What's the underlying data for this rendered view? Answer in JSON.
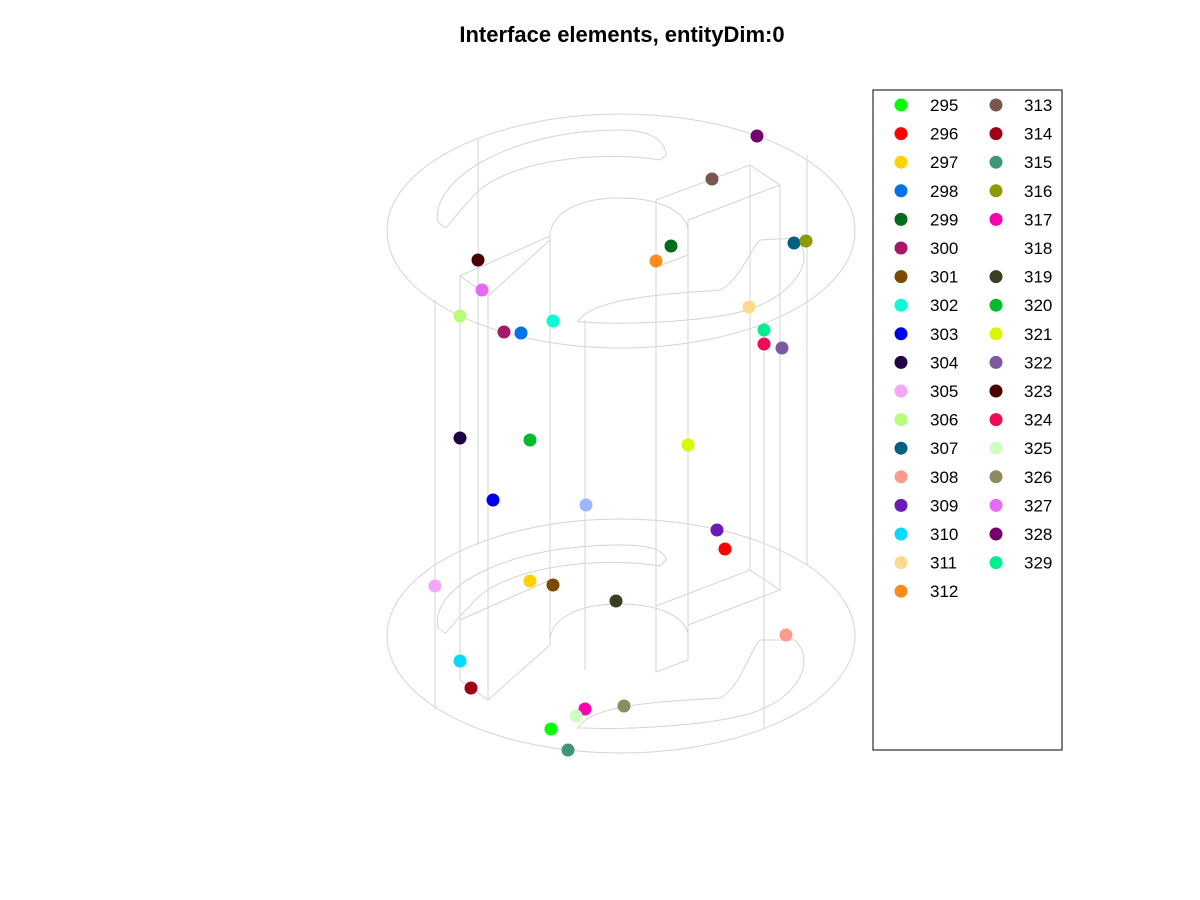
{
  "chart_data": {
    "type": "scatter",
    "title": "Interface elements, entityDim:0",
    "xlabel": "",
    "ylabel": "",
    "legend_placement": "right",
    "grid": false,
    "series": [
      {
        "name": "295",
        "color": "#00ff00",
        "points": [
          [
            551,
            729
          ]
        ]
      },
      {
        "name": "296",
        "color": "#ff0000",
        "points": [
          [
            725,
            549
          ]
        ]
      },
      {
        "name": "297",
        "color": "#ffd200",
        "points": [
          [
            530,
            581
          ]
        ]
      },
      {
        "name": "298",
        "color": "#0071eb",
        "points": [
          [
            521,
            333
          ]
        ]
      },
      {
        "name": "299",
        "color": "#006b1a",
        "points": [
          [
            671,
            246
          ]
        ]
      },
      {
        "name": "300",
        "color": "#a71966",
        "points": [
          [
            504,
            332
          ]
        ]
      },
      {
        "name": "301",
        "color": "#7a4a00",
        "points": [
          [
            553,
            585
          ]
        ]
      },
      {
        "name": "302",
        "color": "#00ffd7",
        "points": [
          [
            553,
            321
          ]
        ]
      },
      {
        "name": "303",
        "color": "#0000ee",
        "points": [
          [
            493,
            500
          ]
        ]
      },
      {
        "name": "304",
        "color": "#1f0045",
        "points": [
          [
            460,
            438
          ]
        ]
      },
      {
        "name": "305",
        "color": "#f3a6fa",
        "points": [
          [
            435,
            586
          ]
        ]
      },
      {
        "name": "306",
        "color": "#b8fc77",
        "points": [
          [
            460,
            316
          ]
        ]
      },
      {
        "name": "307",
        "color": "#005f82",
        "points": [
          [
            794,
            243
          ]
        ]
      },
      {
        "name": "308",
        "color": "#fb9b8e",
        "points": [
          [
            786,
            635
          ]
        ]
      },
      {
        "name": "309",
        "color": "#6a1ab8",
        "points": [
          [
            717,
            530
          ]
        ]
      },
      {
        "name": "310",
        "color": "#00dcff",
        "points": [
          [
            460,
            661
          ]
        ]
      },
      {
        "name": "311",
        "color": "#ffd98c",
        "points": [
          [
            749,
            307
          ]
        ]
      },
      {
        "name": "312",
        "color": "#ff8c1a",
        "points": [
          [
            656,
            261
          ]
        ]
      },
      {
        "name": "313",
        "color": "#79574f",
        "points": [
          [
            712,
            179
          ]
        ]
      },
      {
        "name": "314",
        "color": "#9c0018",
        "points": [
          [
            471,
            688
          ]
        ]
      },
      {
        "name": "315",
        "color": "#3f947a",
        "points": [
          [
            568,
            750
          ]
        ]
      },
      {
        "name": "316",
        "color": "#8e9a00",
        "points": [
          [
            806,
            241
          ]
        ]
      },
      {
        "name": "317",
        "color": "#ff00b1",
        "points": [
          [
            585,
            709
          ]
        ]
      },
      {
        "name": "318",
        "color": "#9ab8fb",
        "points": [
          [
            586,
            505
          ]
        ]
      },
      {
        "name": "319",
        "color": "#364124",
        "points": [
          [
            616,
            601
          ]
        ]
      },
      {
        "name": "320",
        "color": "#00bb2e",
        "points": [
          [
            530,
            440
          ]
        ]
      },
      {
        "name": "321",
        "color": "#d8f700",
        "points": [
          [
            688,
            445
          ]
        ]
      },
      {
        "name": "322",
        "color": "#7c59a1",
        "points": [
          [
            782,
            348
          ]
        ]
      },
      {
        "name": "323",
        "color": "#4a0000",
        "points": [
          [
            478,
            260
          ]
        ]
      },
      {
        "name": "324",
        "color": "#f00b53",
        "points": [
          [
            764,
            344
          ]
        ]
      },
      {
        "name": "325",
        "color": "#cdffc2",
        "points": [
          [
            576,
            716
          ]
        ]
      },
      {
        "name": "326",
        "color": "#8b8b5e",
        "points": [
          [
            624,
            706
          ]
        ]
      },
      {
        "name": "327",
        "color": "#e56af4",
        "points": [
          [
            482,
            290
          ]
        ]
      },
      {
        "name": "328",
        "color": "#74006e",
        "points": [
          [
            757,
            136
          ]
        ]
      },
      {
        "name": "329",
        "color": "#00ef8e",
        "points": [
          [
            764,
            330
          ]
        ]
      }
    ]
  }
}
